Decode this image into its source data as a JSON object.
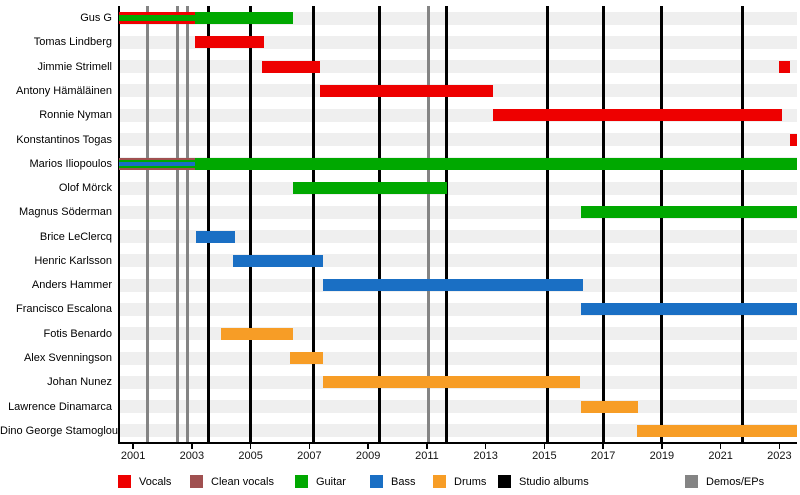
{
  "chart_data": {
    "type": "bar",
    "subtype": "band-member-timeline-gantt",
    "title": "",
    "xlabel": "",
    "ylabel": "",
    "x_axis": {
      "min": 2000.5,
      "max": 2023.6,
      "ticks": [
        2001,
        2003,
        2005,
        2007,
        2009,
        2011,
        2013,
        2015,
        2017,
        2019,
        2021,
        2023
      ]
    },
    "colors": {
      "vocals": "#ee0000",
      "clean_vocals": "#a05050",
      "guitar": "#00a800",
      "bass": "#1a6fc4",
      "drums": "#f79d26",
      "studio_albums": "#000000",
      "demos_eps": "#848484",
      "row_stripe": "#efefef"
    },
    "legend": [
      {
        "label": "Vocals",
        "color": "vocals"
      },
      {
        "label": "Clean vocals",
        "color": "clean_vocals"
      },
      {
        "label": "Guitar",
        "color": "guitar"
      },
      {
        "label": "Bass",
        "color": "bass"
      },
      {
        "label": "Drums",
        "color": "drums"
      },
      {
        "label": "Studio albums",
        "color": "studio_albums"
      },
      {
        "label": "Demos/EPs",
        "color": "demos_eps"
      }
    ],
    "members": [
      {
        "name": "Gus G",
        "segments": [
          {
            "from": 2000.5,
            "to": 2003.1,
            "roles": [
              "vocals",
              "guitar"
            ]
          },
          {
            "from": 2003.1,
            "to": 2006.45,
            "roles": [
              "guitar"
            ]
          }
        ]
      },
      {
        "name": "Tomas Lindberg",
        "segments": [
          {
            "from": 2003.1,
            "to": 2005.45,
            "roles": [
              "vocals"
            ]
          }
        ]
      },
      {
        "name": "Jimmie Strimell",
        "segments": [
          {
            "from": 2005.4,
            "to": 2007.35,
            "roles": [
              "vocals"
            ]
          },
          {
            "from": 2023.0,
            "to": 2023.35,
            "roles": [
              "vocals"
            ]
          }
        ]
      },
      {
        "name": "Antony Hämäläinen",
        "segments": [
          {
            "from": 2007.35,
            "to": 2013.25,
            "roles": [
              "vocals"
            ]
          }
        ]
      },
      {
        "name": "Ronnie Nyman",
        "segments": [
          {
            "from": 2013.25,
            "to": 2023.1,
            "roles": [
              "vocals"
            ]
          }
        ]
      },
      {
        "name": "Konstantinos Togas",
        "segments": [
          {
            "from": 2023.35,
            "to": 2023.6,
            "roles": [
              "vocals"
            ]
          }
        ]
      },
      {
        "name": "Marios Iliopoulos",
        "segments": [
          {
            "from": 2000.5,
            "to": 2003.1,
            "roles": [
              "clean_vocals",
              "guitar",
              "bass"
            ]
          },
          {
            "from": 2003.1,
            "to": 2023.6,
            "roles": [
              "guitar"
            ]
          }
        ]
      },
      {
        "name": "Olof Mörck",
        "segments": [
          {
            "from": 2006.45,
            "to": 2011.7,
            "roles": [
              "guitar"
            ]
          }
        ]
      },
      {
        "name": "Magnus Söderman",
        "segments": [
          {
            "from": 2016.25,
            "to": 2023.6,
            "roles": [
              "guitar"
            ]
          }
        ]
      },
      {
        "name": "Brice LeClercq",
        "segments": [
          {
            "from": 2003.15,
            "to": 2004.45,
            "roles": [
              "bass"
            ]
          }
        ]
      },
      {
        "name": "Henric Karlsson",
        "segments": [
          {
            "from": 2004.4,
            "to": 2007.45,
            "roles": [
              "bass"
            ]
          }
        ]
      },
      {
        "name": "Anders Hammer",
        "segments": [
          {
            "from": 2007.45,
            "to": 2016.3,
            "roles": [
              "bass"
            ]
          }
        ]
      },
      {
        "name": "Francisco Escalona",
        "segments": [
          {
            "from": 2016.25,
            "to": 2023.6,
            "roles": [
              "bass"
            ]
          }
        ]
      },
      {
        "name": "Fotis Benardo",
        "segments": [
          {
            "from": 2004.0,
            "to": 2006.45,
            "roles": [
              "drums"
            ]
          }
        ]
      },
      {
        "name": "Alex Svenningson",
        "segments": [
          {
            "from": 2006.35,
            "to": 2007.45,
            "roles": [
              "drums"
            ]
          }
        ]
      },
      {
        "name": "Johan Nunez",
        "segments": [
          {
            "from": 2007.45,
            "to": 2016.2,
            "roles": [
              "drums"
            ]
          }
        ]
      },
      {
        "name": "Lawrence Dinamarca",
        "segments": [
          {
            "from": 2016.25,
            "to": 2018.2,
            "roles": [
              "drums"
            ]
          }
        ]
      },
      {
        "name": "Dino George Stamoglou",
        "segments": [
          {
            "from": 2018.15,
            "to": 2023.6,
            "roles": [
              "drums"
            ]
          }
        ]
      }
    ],
    "events": {
      "studio_albums": [
        2003.55,
        2005.0,
        2007.15,
        2009.4,
        2011.65,
        2015.1,
        2017.0,
        2019.0,
        2021.75
      ],
      "demos_eps": [
        2001.5,
        2002.5,
        2002.85,
        2011.05
      ]
    }
  }
}
